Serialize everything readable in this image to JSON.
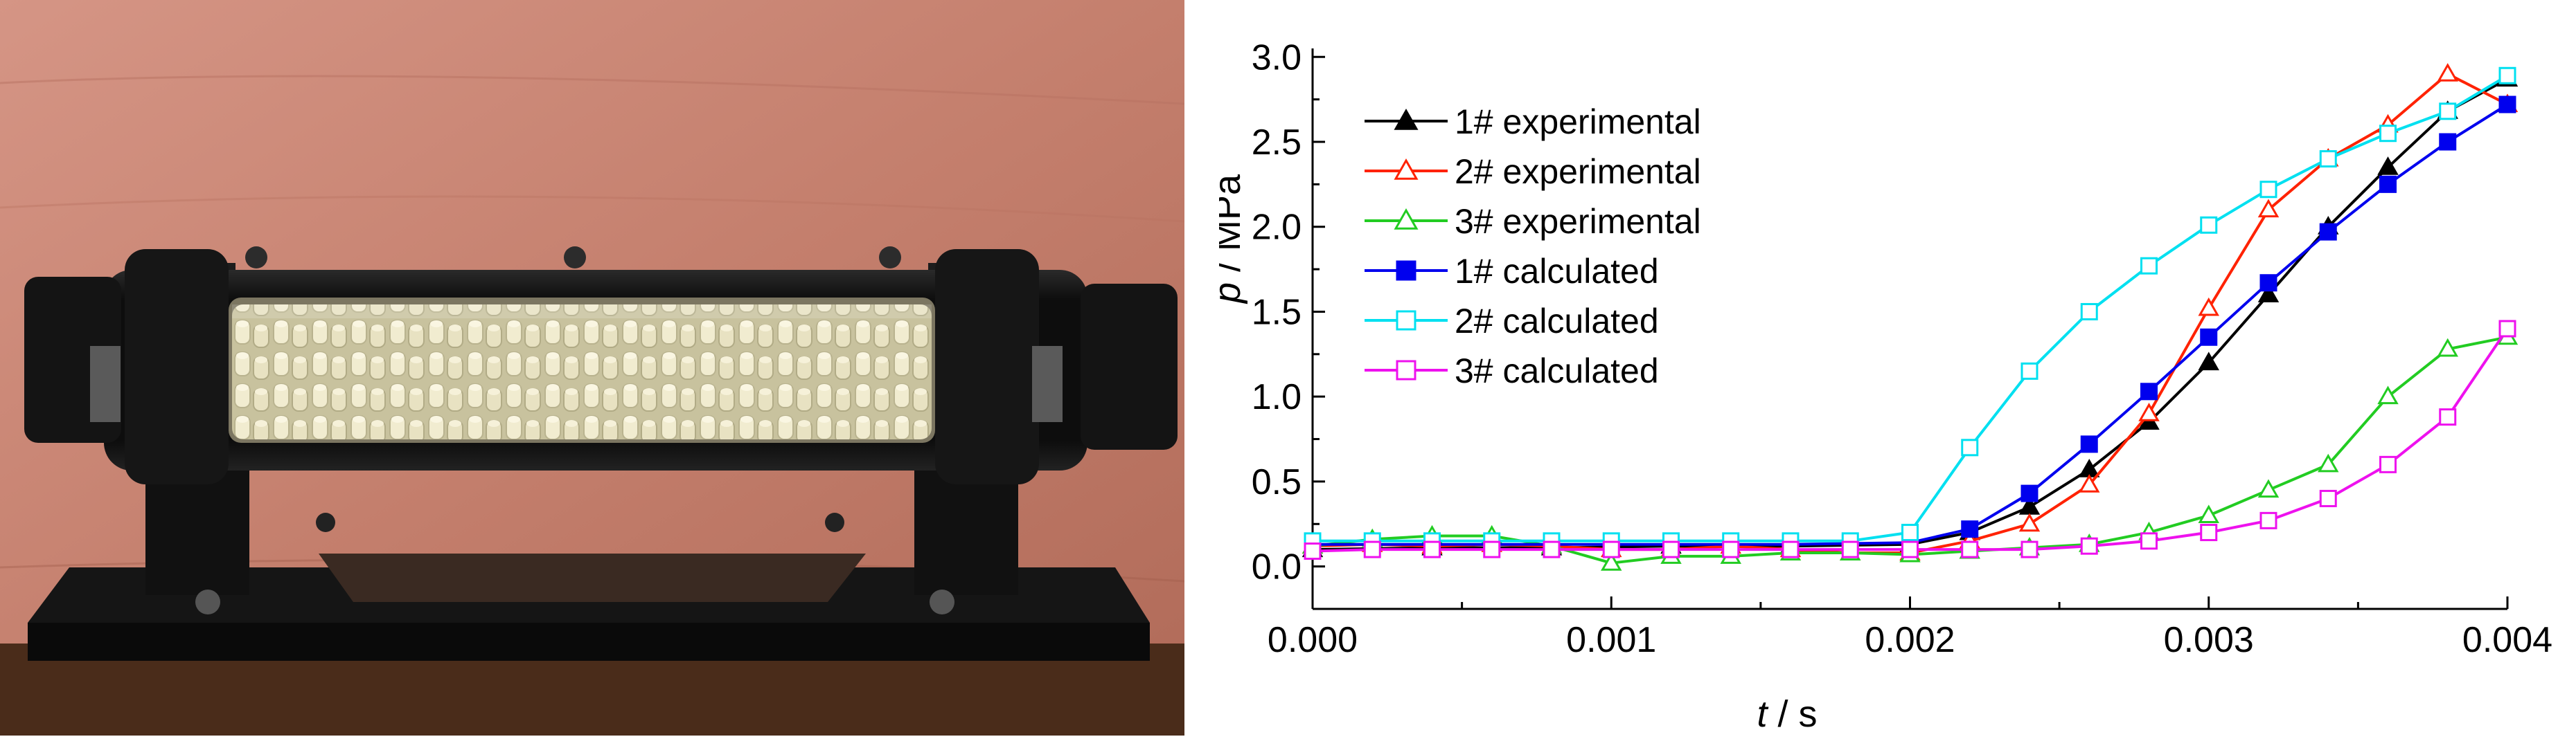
{
  "photo": {
    "icons": [
      "specimen-tube-photo"
    ],
    "colors": {
      "wall": "#c47f6d",
      "ground": "#4a2c1a",
      "holder": "#111111",
      "pellets": "#e9e3c4"
    }
  },
  "chart_data": {
    "type": "line",
    "xlabel_italic": "t",
    "xlabel_unit": " / s",
    "ylabel_italic": "p",
    "ylabel_unit": " / MPa",
    "xlim": [
      0,
      0.004
    ],
    "ylim": [
      -0.25,
      3.05
    ],
    "x_ticks": [
      0.0,
      0.001,
      0.002,
      0.003,
      0.004
    ],
    "x_tick_labels": [
      "0.000",
      "0.001",
      "0.002",
      "0.003",
      "0.004"
    ],
    "y_ticks": [
      0.0,
      0.5,
      1.0,
      1.5,
      2.0,
      2.5,
      3.0
    ],
    "y_tick_labels": [
      "0.0",
      "0.5",
      "1.0",
      "1.5",
      "2.0",
      "2.5",
      "3.0"
    ],
    "grid": false,
    "legend_position": "top-left",
    "series": [
      {
        "name": "1# experimental",
        "color": "#000000",
        "marker": "triangle",
        "filled": true,
        "x": [
          0.0,
          0.0004,
          0.0008,
          0.0012,
          0.0016,
          0.002,
          0.0022,
          0.0024,
          0.0026,
          0.0028,
          0.003,
          0.0032,
          0.0034,
          0.0036,
          0.0038,
          0.004
        ],
        "y": [
          0.1,
          0.11,
          0.11,
          0.12,
          0.12,
          0.13,
          0.2,
          0.35,
          0.57,
          0.85,
          1.2,
          1.6,
          2.0,
          2.35,
          2.68,
          2.87
        ]
      },
      {
        "name": "2# experimental",
        "color": "#ff2200",
        "marker": "triangle",
        "filled": false,
        "x": [
          0.0,
          0.0002,
          0.0004,
          0.0006,
          0.0008,
          0.001,
          0.0012,
          0.0014,
          0.0016,
          0.0018,
          0.002,
          0.0022,
          0.0024,
          0.0026,
          0.0028,
          0.003,
          0.0032,
          0.0034,
          0.0036,
          0.0038,
          0.004
        ],
        "y": [
          0.12,
          0.13,
          0.12,
          0.13,
          0.12,
          0.1,
          0.1,
          0.12,
          0.1,
          0.08,
          0.08,
          0.15,
          0.25,
          0.48,
          0.9,
          1.52,
          2.1,
          2.4,
          2.6,
          2.9,
          2.72
        ]
      },
      {
        "name": "3# experimental",
        "color": "#22cc22",
        "marker": "triangle",
        "filled": false,
        "x": [
          0.0,
          0.0002,
          0.0004,
          0.0006,
          0.0008,
          0.001,
          0.0012,
          0.0014,
          0.0016,
          0.0018,
          0.002,
          0.0022,
          0.0024,
          0.0026,
          0.0028,
          0.003,
          0.0032,
          0.0034,
          0.0036,
          0.0038,
          0.004
        ],
        "y": [
          0.12,
          0.16,
          0.18,
          0.18,
          0.12,
          0.02,
          0.06,
          0.06,
          0.08,
          0.08,
          0.07,
          0.09,
          0.11,
          0.13,
          0.2,
          0.3,
          0.45,
          0.6,
          1.0,
          1.28,
          1.35
        ]
      },
      {
        "name": "1# calculated",
        "color": "#0000ee",
        "marker": "square",
        "filled": true,
        "x": [
          0.0,
          0.0004,
          0.0008,
          0.0012,
          0.0016,
          0.002,
          0.0022,
          0.0024,
          0.0026,
          0.0028,
          0.003,
          0.0032,
          0.0034,
          0.0036,
          0.0038,
          0.004
        ],
        "y": [
          0.13,
          0.13,
          0.13,
          0.13,
          0.13,
          0.14,
          0.22,
          0.43,
          0.72,
          1.03,
          1.35,
          1.67,
          1.97,
          2.25,
          2.5,
          2.72
        ]
      },
      {
        "name": "2# calculated",
        "color": "#00e0f0",
        "marker": "square",
        "filled": false,
        "x": [
          0.0,
          0.0002,
          0.0004,
          0.0006,
          0.0008,
          0.001,
          0.0012,
          0.0014,
          0.0016,
          0.0018,
          0.002,
          0.0022,
          0.0024,
          0.0026,
          0.0028,
          0.003,
          0.0032,
          0.0034,
          0.0036,
          0.0038,
          0.004
        ],
        "y": [
          0.15,
          0.15,
          0.15,
          0.15,
          0.15,
          0.15,
          0.15,
          0.15,
          0.15,
          0.15,
          0.2,
          0.7,
          1.15,
          1.5,
          1.77,
          2.01,
          2.22,
          2.4,
          2.55,
          2.68,
          2.89
        ]
      },
      {
        "name": "3# calculated",
        "color": "#ee11ee",
        "marker": "square",
        "filled": false,
        "x": [
          0.0,
          0.0002,
          0.0004,
          0.0006,
          0.0008,
          0.001,
          0.0012,
          0.0014,
          0.0016,
          0.0018,
          0.002,
          0.0022,
          0.0024,
          0.0026,
          0.0028,
          0.003,
          0.0032,
          0.0034,
          0.0036,
          0.0038,
          0.004
        ],
        "y": [
          0.09,
          0.1,
          0.1,
          0.1,
          0.1,
          0.1,
          0.1,
          0.1,
          0.1,
          0.1,
          0.1,
          0.1,
          0.1,
          0.12,
          0.15,
          0.2,
          0.27,
          0.4,
          0.6,
          0.88,
          1.4
        ]
      }
    ]
  }
}
